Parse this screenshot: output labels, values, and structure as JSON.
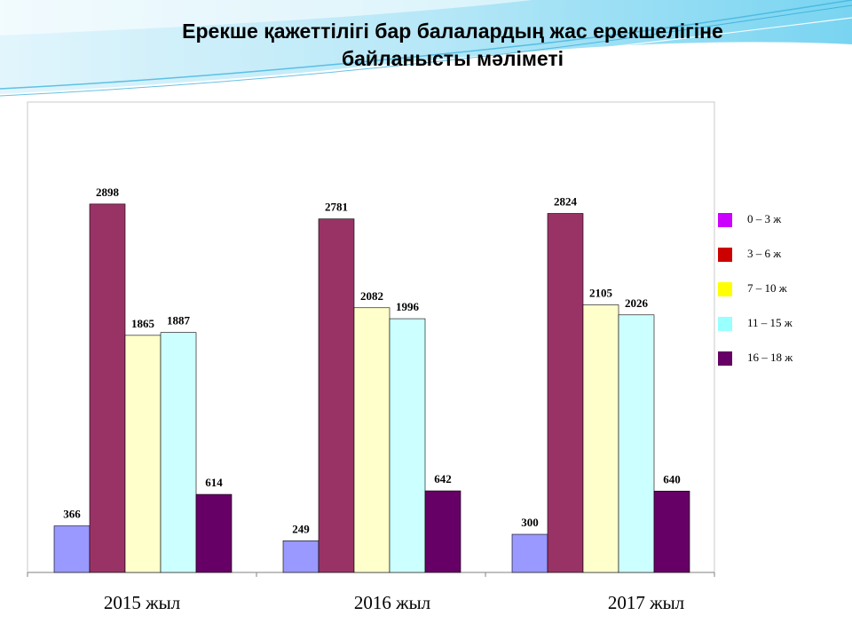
{
  "title": {
    "line1": "Ерекше қажеттілігі бар балалардың жас ерекшелігіне",
    "line2": "байланысты мәліметі"
  },
  "chart_data": {
    "type": "bar",
    "categories": [
      "2015 жыл",
      "2016 жыл",
      "2017 жыл"
    ],
    "series": [
      {
        "name": "0 – 3 ж",
        "color": "#9999ff",
        "values": [
          366,
          249,
          300
        ]
      },
      {
        "name": "3 – 6 ж",
        "color": "#993366",
        "values": [
          2898,
          2781,
          2824
        ]
      },
      {
        "name": "7 – 10 ж",
        "color": "#ffffcc",
        "values": [
          1865,
          2082,
          2105
        ]
      },
      {
        "name": "11 – 15 ж",
        "color": "#ccffff",
        "values": [
          1887,
          1996,
          2026
        ]
      },
      {
        "name": "16 – 18 ж",
        "color": "#660066",
        "values": [
          614,
          642,
          640
        ]
      }
    ],
    "legend": {
      "placement": "right",
      "entries": [
        {
          "label": "0 – 3 ж",
          "color": "#cc00ff"
        },
        {
          "label": "3 – 6 ж",
          "color": "#cc0000"
        },
        {
          "label": "7 – 10 ж",
          "color": "#ffff00"
        },
        {
          "label": "11 – 15 ж",
          "color": "#99ffff"
        },
        {
          "label": "16 – 18 ж",
          "color": "#660066"
        }
      ]
    },
    "grid": false
  }
}
